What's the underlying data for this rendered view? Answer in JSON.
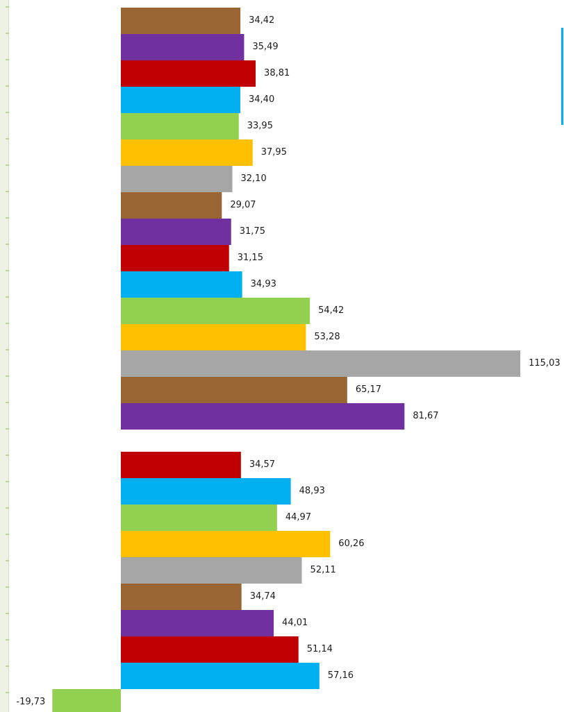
{
  "chart_data": {
    "type": "bar",
    "orientation": "horizontal",
    "title": "",
    "xlabel": "",
    "ylabel": "",
    "grid": false,
    "legend": "not visible",
    "value_range": [
      -19.73,
      115.03
    ],
    "color_cycle": [
      "#996633",
      "#7030a0",
      "#c00000",
      "#00b0f0",
      "#92d050",
      "#ffc000",
      "#a6a6a6"
    ],
    "groups": [
      {
        "bars": [
          {
            "value": 34.42,
            "label": "34,42",
            "color": "#996633"
          },
          {
            "value": 35.49,
            "label": "35,49",
            "color": "#7030a0"
          },
          {
            "value": 38.81,
            "label": "38,81",
            "color": "#c00000"
          },
          {
            "value": 34.4,
            "label": "34,40",
            "color": "#00b0f0"
          },
          {
            "value": 33.95,
            "label": "33,95",
            "color": "#92d050"
          },
          {
            "value": 37.95,
            "label": "37,95",
            "color": "#ffc000"
          },
          {
            "value": 32.1,
            "label": "32,10",
            "color": "#a6a6a6"
          },
          {
            "value": 29.07,
            "label": "29,07",
            "color": "#996633"
          },
          {
            "value": 31.75,
            "label": "31,75",
            "color": "#7030a0"
          },
          {
            "value": 31.15,
            "label": "31,15",
            "color": "#c00000"
          },
          {
            "value": 34.93,
            "label": "34,93",
            "color": "#00b0f0"
          },
          {
            "value": 54.42,
            "label": "54,42",
            "color": "#92d050"
          },
          {
            "value": 53.28,
            "label": "53,28",
            "color": "#ffc000"
          },
          {
            "value": 115.03,
            "label": "115,03",
            "color": "#a6a6a6"
          },
          {
            "value": 65.17,
            "label": "65,17",
            "color": "#996633"
          },
          {
            "value": 81.67,
            "label": "81,67",
            "color": "#7030a0"
          }
        ]
      },
      {
        "bars": [
          {
            "value": 34.57,
            "label": "34,57",
            "color": "#c00000"
          },
          {
            "value": 48.93,
            "label": "48,93",
            "color": "#00b0f0"
          },
          {
            "value": 44.97,
            "label": "44,97",
            "color": "#92d050"
          },
          {
            "value": 60.26,
            "label": "60,26",
            "color": "#ffc000"
          },
          {
            "value": 52.11,
            "label": "52,11",
            "color": "#a6a6a6"
          },
          {
            "value": 34.74,
            "label": "34,74",
            "color": "#996633"
          },
          {
            "value": 44.01,
            "label": "44,01",
            "color": "#7030a0"
          },
          {
            "value": 51.14,
            "label": "51,14",
            "color": "#c00000"
          },
          {
            "value": 57.16,
            "label": "57,16",
            "color": "#00b0f0"
          },
          {
            "value": -19.73,
            "label": "-19,73",
            "color": "#92d050"
          }
        ]
      }
    ]
  }
}
